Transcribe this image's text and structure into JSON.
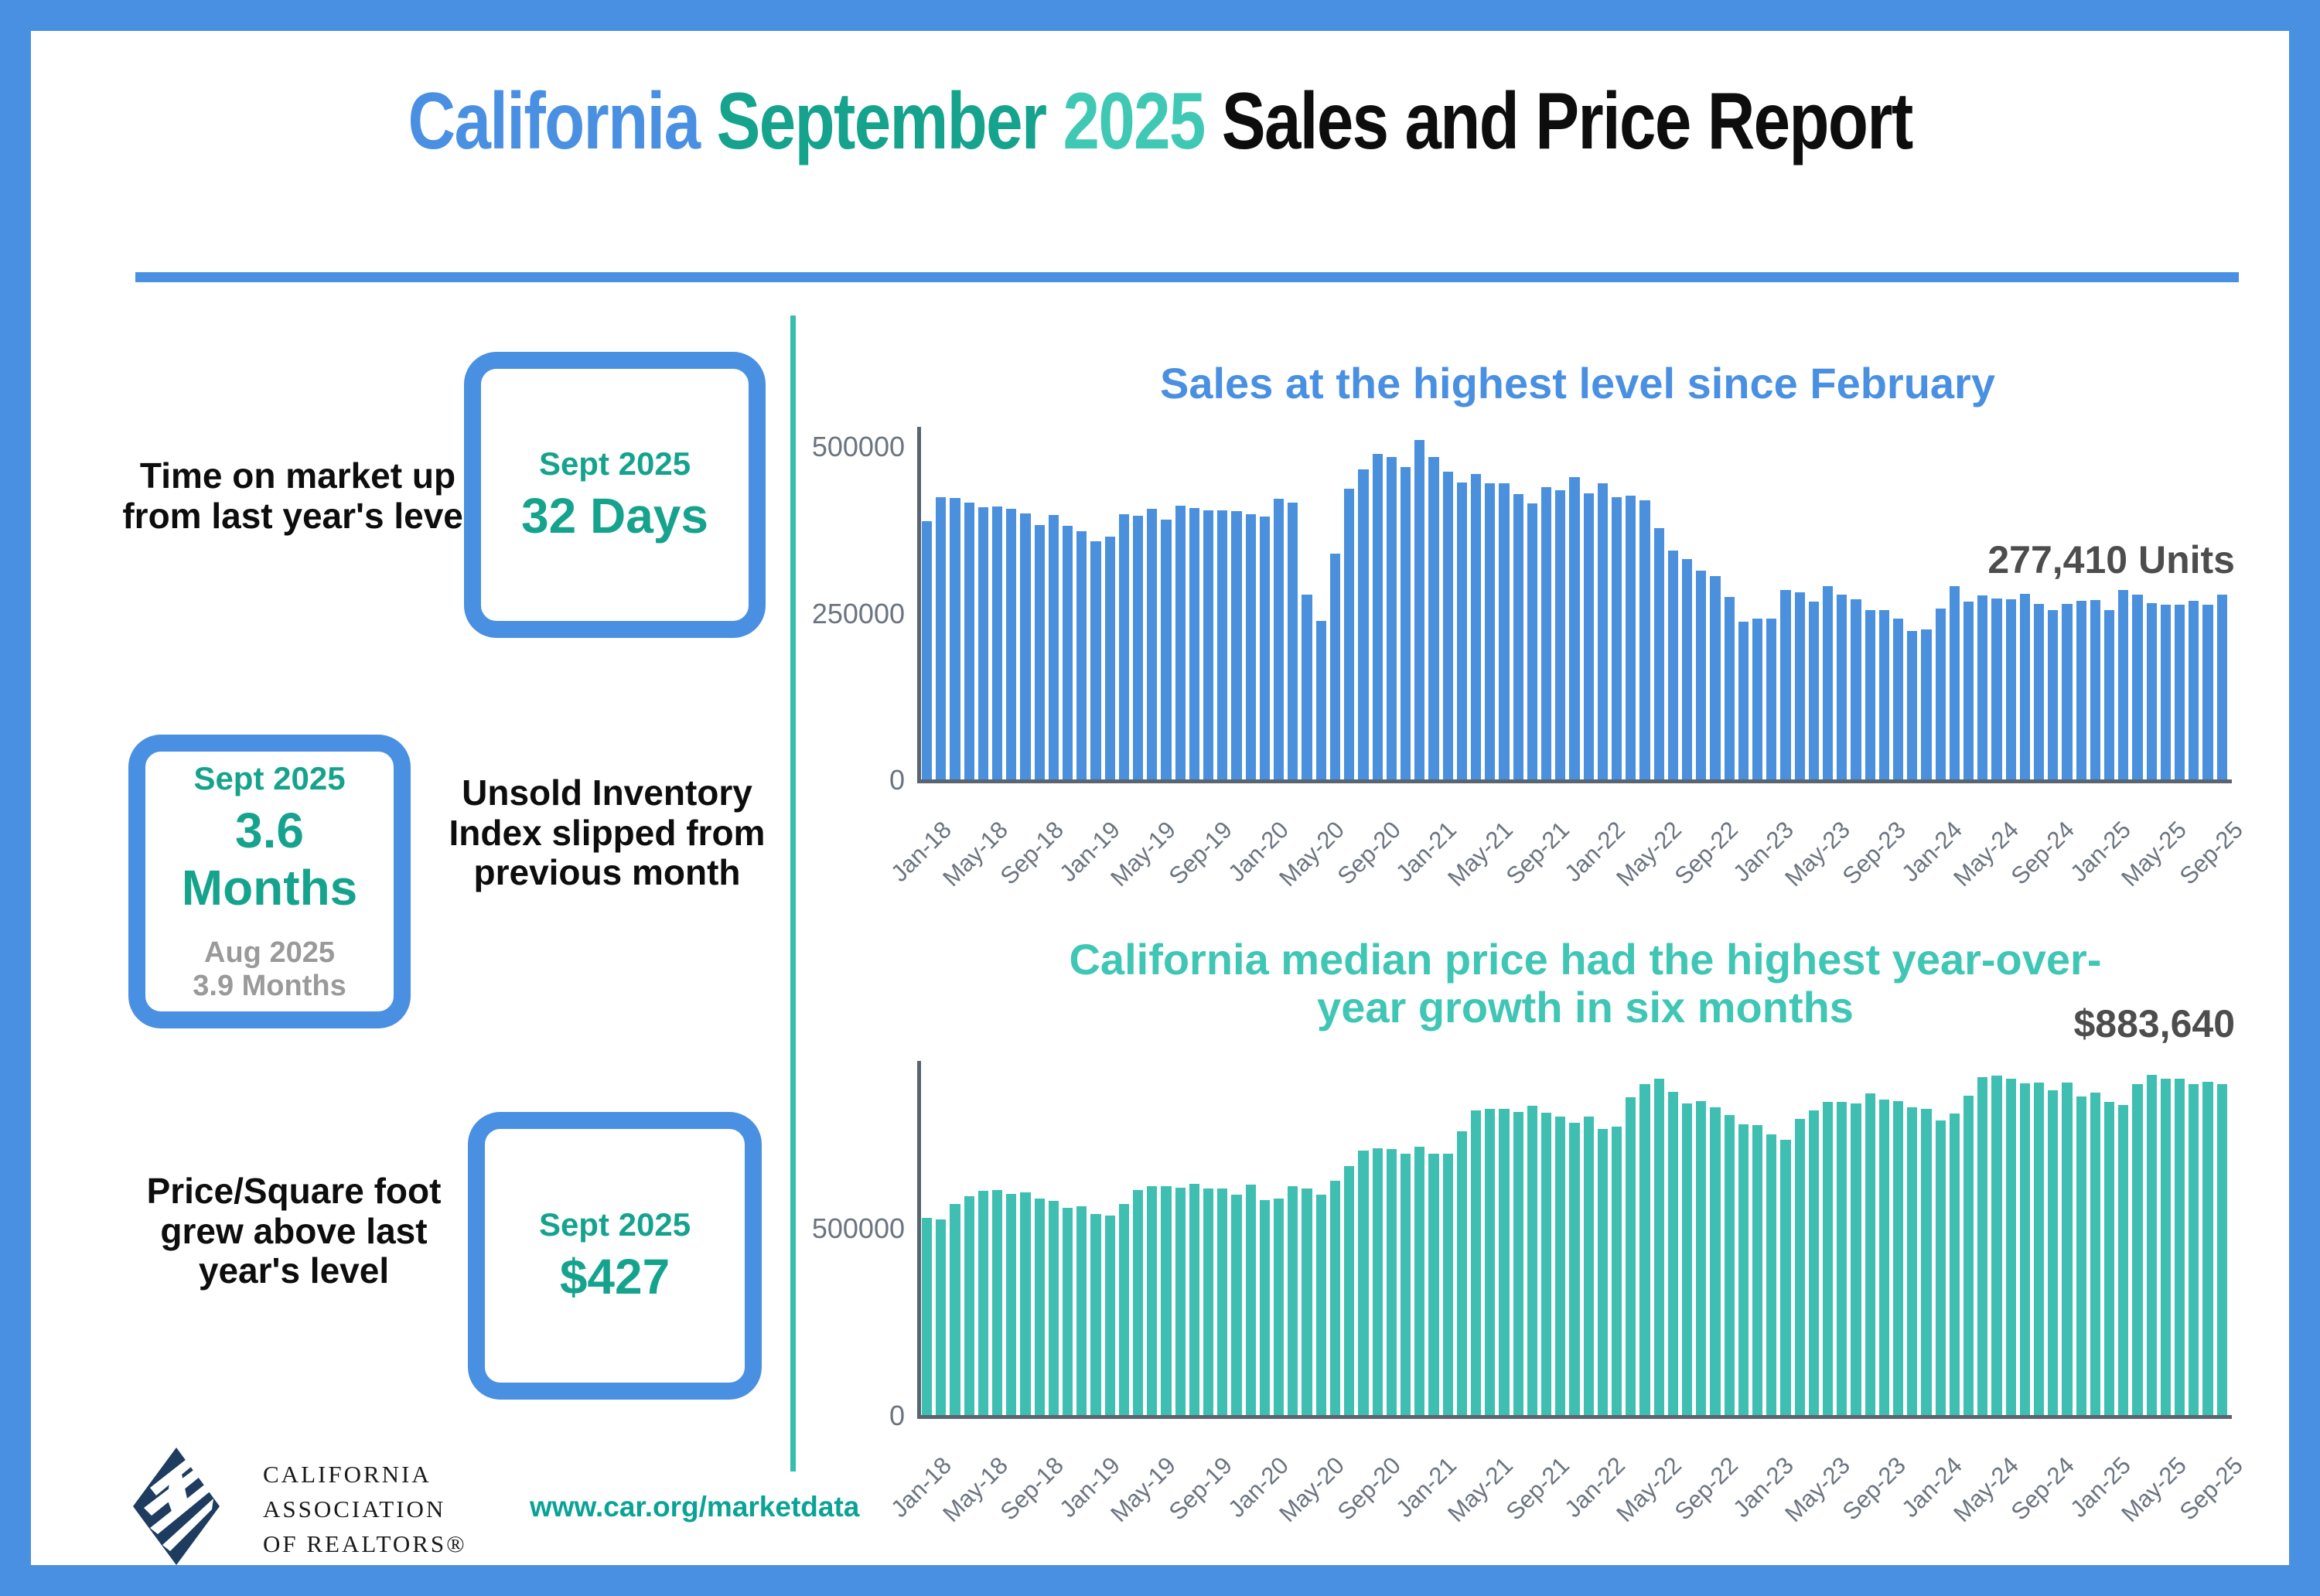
{
  "page": {
    "header": {
      "title_parts": {
        "california": "California",
        "month": "September",
        "year": "2025",
        "rest": "Sales and Price Report"
      },
      "accent_blue": "#4a90e2",
      "accent_teal_dark": "#16a38e",
      "accent_teal_light": "#3fc8b4"
    },
    "stats": [
      {
        "label": "Time on market up from last year's level",
        "period": "Sept 2025",
        "value": "32 Days"
      },
      {
        "label": "Unsold Inventory Index slipped from previous month",
        "period": "Sept 2025",
        "value": "3.6 Months",
        "prev_period": "Aug 2025",
        "prev_value": "3.9 Months"
      },
      {
        "label": "Price/Square foot grew above last year's level",
        "period": "Sept 2025",
        "value": "$427"
      }
    ],
    "footer": {
      "logo_line1": "CALIFORNIA",
      "logo_line2": "ASSOCIATION",
      "logo_line3": "OF REALTORS®",
      "url": "www.car.org/marketdata",
      "logo_color": "#1d3c5f"
    }
  },
  "chart_data": [
    {
      "type": "bar",
      "id": "sales",
      "title": "Sales at the highest level since February",
      "title_color": "#4a90e2",
      "bar_color": "#4a90dd",
      "annotation": "277,410 Units",
      "xlabel": "",
      "ylabel": "",
      "ylim": [
        0,
        520000
      ],
      "yticks": [
        {
          "v": 0,
          "label": "0"
        },
        {
          "v": 250000,
          "label": "250000"
        },
        {
          "v": 500000,
          "label": "500000"
        }
      ],
      "x_start": "Jan-18",
      "x_end": "Sep-25",
      "frequency": "monthly",
      "tick_every": 4,
      "x_tick_labels": [
        "Jan-18",
        "May-18",
        "Sep-18",
        "Jan-19",
        "May-19",
        "Sep-19",
        "Jan-20",
        "May-20",
        "Sep-20",
        "Jan-21",
        "May-21",
        "Sep-21",
        "Jan-22",
        "May-22",
        "Sep-22",
        "Jan-23",
        "May-23",
        "Sep-23",
        "Jan-24",
        "May-24",
        "Sep-24",
        "Jan-25",
        "May-25",
        "Sep-25"
      ],
      "values": [
        388000,
        424000,
        423000,
        416000,
        409000,
        410000,
        406000,
        399000,
        382000,
        397000,
        381000,
        373000,
        358000,
        364000,
        398000,
        396000,
        406000,
        390000,
        411000,
        407000,
        404000,
        404000,
        403000,
        398000,
        395000,
        421000,
        416000,
        277000,
        238000,
        339000,
        437000,
        465000,
        489000,
        484000,
        469000,
        509000,
        484000,
        462000,
        446000,
        458000,
        445000,
        444000,
        428000,
        414000,
        439000,
        434000,
        454000,
        430000,
        444000,
        424000,
        426000,
        419000,
        377000,
        344000,
        331000,
        313000,
        305000,
        274000,
        237000,
        241000,
        241000,
        284000,
        281000,
        267000,
        290000,
        277000,
        270000,
        254000,
        254000,
        241000,
        223000,
        225000,
        256000,
        290000,
        267000,
        276000,
        272000,
        270000,
        279000,
        263000,
        254000,
        264000,
        268000,
        269000,
        254000,
        284000,
        277000,
        265000,
        262000,
        262000,
        268000,
        262000,
        277410
      ]
    },
    {
      "type": "bar",
      "id": "price",
      "title": "California median price had the highest year-over-year growth in six months",
      "title_line1": "California median price had the highest year-over-",
      "title_line2": "year growth in six months",
      "title_color": "#3fc6b5",
      "bar_color": "#3fbfb2",
      "annotation": "$883,640",
      "xlabel": "",
      "ylabel": "",
      "ylim": [
        0,
        930000
      ],
      "yticks": [
        {
          "v": 0,
          "label": "0"
        },
        {
          "v": 500000,
          "label": "500000"
        }
      ],
      "x_start": "Jan-18",
      "x_end": "Sep-25",
      "frequency": "monthly",
      "tick_every": 4,
      "x_tick_labels": [
        "Jan-18",
        "May-18",
        "Sep-18",
        "Jan-19",
        "May-19",
        "Sep-19",
        "Jan-20",
        "May-20",
        "Sep-20",
        "Jan-21",
        "May-21",
        "Sep-21",
        "Jan-22",
        "May-22",
        "Sep-22",
        "Jan-23",
        "May-23",
        "Sep-23",
        "Jan-24",
        "May-24",
        "Sep-24",
        "Jan-25",
        "May-25",
        "Sep-25"
      ],
      "values": [
        527000,
        522000,
        564000,
        584000,
        600000,
        602000,
        591000,
        596000,
        578000,
        572000,
        554000,
        557000,
        538000,
        534000,
        565000,
        602000,
        611000,
        611000,
        607000,
        617000,
        605000,
        605000,
        589000,
        615000,
        575000,
        578000,
        612000,
        606000,
        588000,
        626000,
        666000,
        707000,
        712000,
        711000,
        699000,
        717000,
        699000,
        699000,
        759000,
        814000,
        819000,
        819000,
        811000,
        827000,
        809000,
        798000,
        782000,
        797000,
        765000,
        771000,
        849000,
        884000,
        898000,
        864000,
        833000,
        839000,
        822000,
        801000,
        777000,
        774000,
        751000,
        735000,
        791000,
        815000,
        836000,
        838000,
        832000,
        859000,
        843000,
        840000,
        822000,
        819000,
        788000,
        806000,
        854000,
        904000,
        908000,
        900000,
        886000,
        888000,
        868000,
        888000,
        852000,
        861000,
        838000,
        829000,
        884000,
        910000,
        900000,
        899000,
        884000,
        890000,
        883640
      ]
    }
  ]
}
